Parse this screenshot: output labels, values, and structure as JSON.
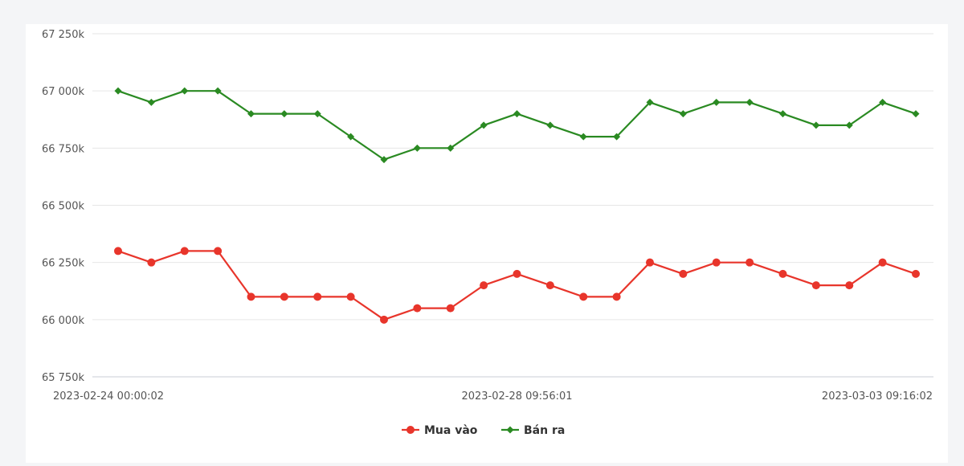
{
  "chart_data": {
    "type": "line",
    "title": "",
    "xlabel": "",
    "ylabel": "",
    "ylim": [
      65750,
      67250
    ],
    "y_ticks": [
      65750,
      66000,
      66250,
      66500,
      66750,
      67000,
      67250
    ],
    "y_tick_labels": [
      "65 750k",
      "66 000k",
      "66 250k",
      "66 500k",
      "66 750k",
      "67 000k",
      "67 250k"
    ],
    "x_tick_labels": [
      {
        "index": 0,
        "label": "2023-02-24 00:00:02"
      },
      {
        "index": 12,
        "label": "2023-02-28 09:56:01"
      },
      {
        "index": 24,
        "label": "2023-03-03 09:16:02"
      }
    ],
    "point_count": 25,
    "grid": true,
    "legend_position": "bottom",
    "series": [
      {
        "name": "Mua vào",
        "color": "#e8352b",
        "marker": "circle",
        "values": [
          66300,
          66250,
          66300,
          66300,
          66100,
          66100,
          66100,
          66100,
          66000,
          66050,
          66050,
          66150,
          66200,
          66150,
          66100,
          66100,
          66250,
          66200,
          66250,
          66250,
          66200,
          66150,
          66150,
          66250,
          66200
        ]
      },
      {
        "name": "Bán ra",
        "color": "#2a8a22",
        "marker": "diamond",
        "values": [
          67000,
          66950,
          67000,
          67000,
          66900,
          66900,
          66900,
          66800,
          66700,
          66750,
          66750,
          66850,
          66900,
          66850,
          66800,
          66800,
          66950,
          66900,
          66950,
          66950,
          66900,
          66850,
          66850,
          66950,
          66900
        ]
      }
    ]
  }
}
